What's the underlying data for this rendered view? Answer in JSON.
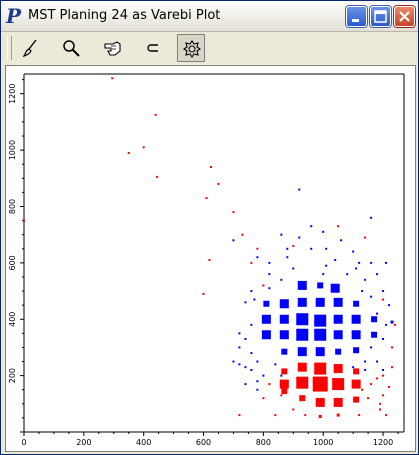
{
  "window": {
    "title": "MST Planing 24 as Varebi Plot",
    "app_icon_letter": "P"
  },
  "toolbar": {
    "tools": [
      {
        "name": "brush-icon"
      },
      {
        "name": "magnifier-icon"
      },
      {
        "name": "pointing-hand-icon"
      },
      {
        "name": "lasso-icon"
      },
      {
        "name": "settings-icon",
        "active": true
      }
    ]
  },
  "colors": {
    "blue": "#0000ff",
    "red": "#ff0000",
    "titlebar": "#ece9d8"
  },
  "chart_data": {
    "type": "scatter",
    "xlim": [
      0,
      1270
    ],
    "ylim": [
      0,
      1270
    ],
    "x_ticks": [
      "0",
      "200",
      "400",
      "600",
      "800",
      "1000",
      "1200"
    ],
    "y_ticks": [
      "200",
      "400",
      "600",
      "800",
      "1000",
      "1200"
    ],
    "series": [
      {
        "color": "blue",
        "cells": [
          {
            "x": 930,
            "y": 520,
            "s": 3
          },
          {
            "x": 990,
            "y": 520,
            "s": 2
          },
          {
            "x": 1040,
            "y": 510,
            "s": 3
          },
          {
            "x": 810,
            "y": 455,
            "s": 2
          },
          {
            "x": 870,
            "y": 455,
            "s": 3
          },
          {
            "x": 930,
            "y": 460,
            "s": 3
          },
          {
            "x": 990,
            "y": 460,
            "s": 3
          },
          {
            "x": 1050,
            "y": 460,
            "s": 3
          },
          {
            "x": 1110,
            "y": 455,
            "s": 2
          },
          {
            "x": 810,
            "y": 400,
            "s": 3
          },
          {
            "x": 870,
            "y": 400,
            "s": 3
          },
          {
            "x": 930,
            "y": 400,
            "s": 4
          },
          {
            "x": 990,
            "y": 395,
            "s": 4
          },
          {
            "x": 1050,
            "y": 400,
            "s": 3
          },
          {
            "x": 1110,
            "y": 400,
            "s": 3
          },
          {
            "x": 1170,
            "y": 400,
            "s": 2
          },
          {
            "x": 1230,
            "y": 390,
            "s": 1
          },
          {
            "x": 810,
            "y": 345,
            "s": 3
          },
          {
            "x": 870,
            "y": 345,
            "s": 3
          },
          {
            "x": 930,
            "y": 345,
            "s": 4
          },
          {
            "x": 990,
            "y": 345,
            "s": 4
          },
          {
            "x": 1050,
            "y": 345,
            "s": 3
          },
          {
            "x": 1110,
            "y": 345,
            "s": 3
          },
          {
            "x": 1170,
            "y": 345,
            "s": 2
          },
          {
            "x": 870,
            "y": 285,
            "s": 2
          },
          {
            "x": 930,
            "y": 285,
            "s": 3
          },
          {
            "x": 990,
            "y": 285,
            "s": 3
          },
          {
            "x": 1050,
            "y": 285,
            "s": 2
          },
          {
            "x": 1110,
            "y": 290,
            "s": 2
          }
        ],
        "dots": [
          [
            860,
            700
          ],
          [
            920,
            690
          ],
          [
            960,
            730
          ],
          [
            1000,
            710
          ],
          [
            1060,
            680
          ],
          [
            1100,
            640
          ],
          [
            880,
            650
          ],
          [
            780,
            620
          ],
          [
            820,
            560
          ],
          [
            760,
            500
          ],
          [
            740,
            460
          ],
          [
            820,
            600
          ],
          [
            960,
            650
          ],
          [
            1040,
            610
          ],
          [
            1120,
            600
          ],
          [
            1180,
            560
          ],
          [
            1200,
            500
          ],
          [
            1160,
            480
          ],
          [
            1220,
            450
          ],
          [
            1140,
            540
          ],
          [
            760,
            380
          ],
          [
            740,
            330
          ],
          [
            760,
            280
          ],
          [
            720,
            240
          ],
          [
            760,
            220
          ],
          [
            800,
            200
          ],
          [
            780,
            180
          ],
          [
            740,
            170
          ],
          [
            700,
            250
          ],
          [
            720,
            300
          ],
          [
            720,
            350
          ],
          [
            840,
            240
          ],
          [
            860,
            200
          ],
          [
            780,
            150
          ],
          [
            1140,
            250
          ],
          [
            1180,
            250
          ],
          [
            1200,
            220
          ],
          [
            1160,
            300
          ],
          [
            1140,
            220
          ],
          [
            1100,
            230
          ],
          [
            700,
            680
          ],
          [
            920,
            860
          ],
          [
            1160,
            760
          ],
          [
            1110,
            580
          ],
          [
            900,
            580
          ],
          [
            1010,
            590
          ],
          [
            1080,
            560
          ],
          [
            860,
            540
          ],
          [
            1000,
            560
          ],
          [
            1210,
            600
          ],
          [
            1160,
            600
          ],
          [
            1180,
            420
          ],
          [
            780,
            250
          ],
          [
            740,
            230
          ],
          [
            880,
            620
          ],
          [
            1010,
            650
          ],
          [
            770,
            470
          ],
          [
            820,
            510
          ],
          [
            1130,
            500
          ],
          [
            1200,
            330
          ],
          [
            1210,
            380
          ]
        ]
      },
      {
        "color": "red",
        "cells": [
          {
            "x": 930,
            "y": 230,
            "s": 3
          },
          {
            "x": 990,
            "y": 225,
            "s": 4
          },
          {
            "x": 1050,
            "y": 225,
            "s": 3
          },
          {
            "x": 870,
            "y": 215,
            "s": 2
          },
          {
            "x": 1110,
            "y": 215,
            "s": 2
          },
          {
            "x": 930,
            "y": 175,
            "s": 4
          },
          {
            "x": 990,
            "y": 170,
            "s": 5
          },
          {
            "x": 1050,
            "y": 170,
            "s": 4
          },
          {
            "x": 870,
            "y": 170,
            "s": 3
          },
          {
            "x": 1110,
            "y": 170,
            "s": 3
          },
          {
            "x": 930,
            "y": 120,
            "s": 2
          },
          {
            "x": 990,
            "y": 105,
            "s": 3
          },
          {
            "x": 1050,
            "y": 105,
            "s": 3
          },
          {
            "x": 870,
            "y": 145,
            "s": 2
          },
          {
            "x": 1110,
            "y": 115,
            "s": 2
          },
          {
            "x": 1050,
            "y": 60,
            "s": 1
          },
          {
            "x": 990,
            "y": 55,
            "s": 1
          }
        ],
        "dots": [
          [
            295,
            1255
          ],
          [
            440,
            1125
          ],
          [
            400,
            1010
          ],
          [
            350,
            990
          ],
          [
            445,
            905
          ],
          [
            610,
            830
          ],
          [
            625,
            940
          ],
          [
            650,
            880
          ],
          [
            0,
            750
          ],
          [
            700,
            780
          ],
          [
            730,
            700
          ],
          [
            780,
            650
          ],
          [
            760,
            600
          ],
          [
            620,
            610
          ],
          [
            600,
            490
          ],
          [
            800,
            520
          ],
          [
            900,
            660
          ],
          [
            1050,
            730
          ],
          [
            1140,
            690
          ],
          [
            1200,
            470
          ],
          [
            1230,
            300
          ],
          [
            1220,
            160
          ],
          [
            1200,
            130
          ],
          [
            1190,
            80
          ],
          [
            1150,
            120
          ],
          [
            1120,
            60
          ],
          [
            1190,
            100
          ],
          [
            1210,
            60
          ],
          [
            1230,
            230
          ],
          [
            800,
            120
          ],
          [
            840,
            60
          ],
          [
            720,
            60
          ],
          [
            860,
            130
          ],
          [
            1160,
            170
          ],
          [
            1180,
            190
          ],
          [
            1130,
            150
          ],
          [
            1200,
            200
          ],
          [
            820,
            170
          ],
          [
            940,
            60
          ],
          [
            900,
            80
          ],
          [
            1240,
            380
          ]
        ]
      }
    ]
  }
}
